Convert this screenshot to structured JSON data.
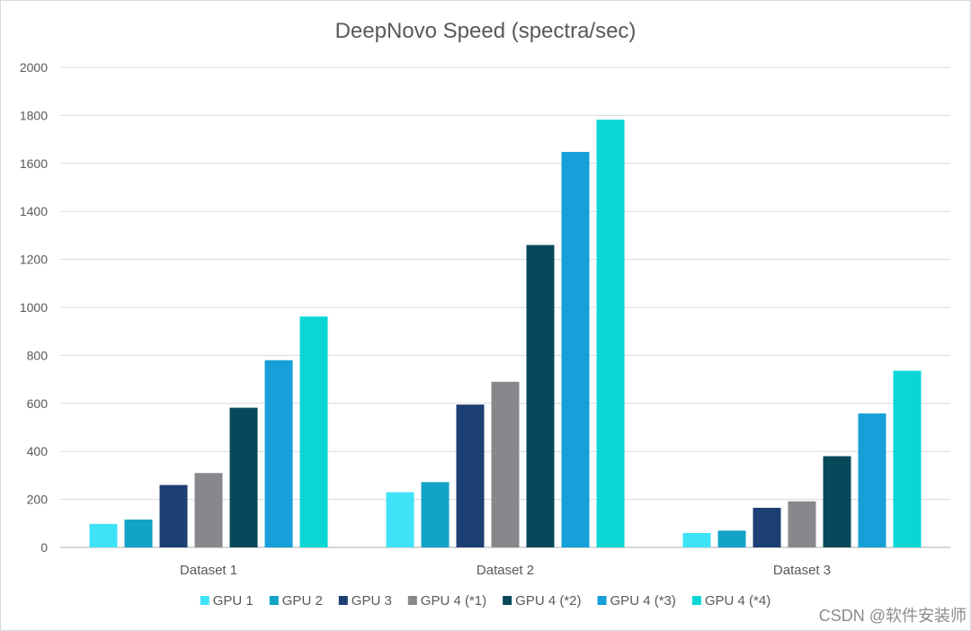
{
  "chart_data": {
    "type": "bar",
    "title": "DeepNovo Speed (spectra/sec)",
    "xlabel": "",
    "ylabel": "",
    "ylim": [
      0,
      2000
    ],
    "yticks": [
      0,
      200,
      400,
      600,
      800,
      1000,
      1200,
      1400,
      1600,
      1800,
      2000
    ],
    "grid": true,
    "legend": "bottom",
    "categories": [
      "Dataset 1",
      "Dataset 2",
      "Dataset 3"
    ],
    "series": [
      {
        "name": "GPU 1",
        "color": "#3fe3f7",
        "values": [
          98,
          230,
          60
        ]
      },
      {
        "name": "GPU 2",
        "color": "#12a3c6",
        "values": [
          116,
          272,
          70
        ]
      },
      {
        "name": "GPU 3",
        "color": "#1c3f74",
        "values": [
          260,
          595,
          165
        ]
      },
      {
        "name": "GPU 4 (*1)",
        "color": "#88878c",
        "values": [
          310,
          690,
          192
        ]
      },
      {
        "name": "GPU 4 (*2)",
        "color": "#07495a",
        "values": [
          582,
          1260,
          380
        ]
      },
      {
        "name": "GPU 4 (*3)",
        "color": "#169fd8",
        "values": [
          780,
          1648,
          558
        ]
      },
      {
        "name": "GPU 4 (*4)",
        "color": "#0ad6d6",
        "values": [
          962,
          1782,
          736
        ]
      }
    ]
  },
  "watermark": "CSDN @软件安装师"
}
